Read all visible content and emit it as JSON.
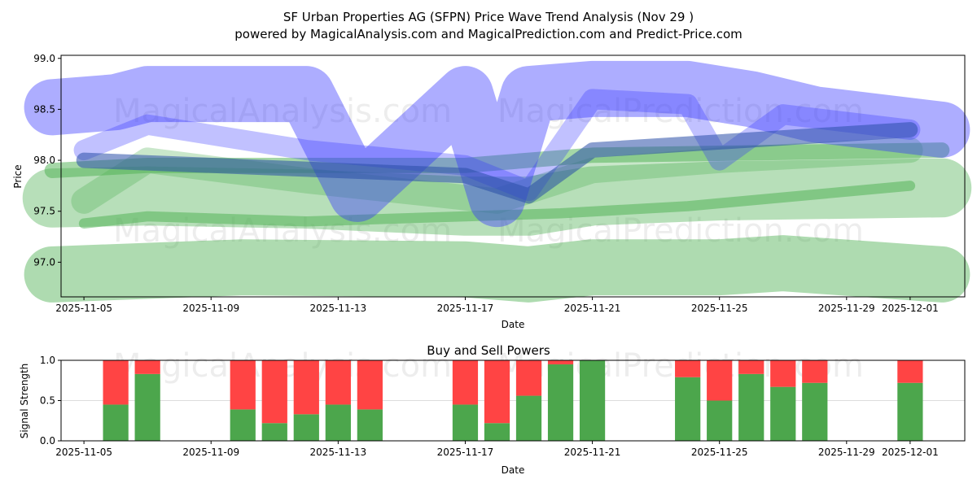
{
  "title_line1": "SF Urban Properties AG (SFPN) Price Wave Trend Analysis (Nov 29 )",
  "title_line2": "powered by MagicalAnalysis.com and MagicalPrediction.com and Predict-Price.com",
  "watermarks": [
    "MagicalAnalysis.com",
    "MagicalPrediction.com"
  ],
  "colors": {
    "blue": "#3333ff",
    "darkblue": "#2a4fa8",
    "green": "#4caf50",
    "buy": "#4ca64c",
    "sell": "#ff4444"
  },
  "chart_data": [
    {
      "type": "line",
      "title": "",
      "xlabel": "Date",
      "ylabel": "Price",
      "ylim": [
        96.66,
        99.03
      ],
      "xlim": [
        "2025-11-04.28",
        "2025-12-02.72"
      ],
      "yticks": [
        "97.0",
        "97.5",
        "98.0",
        "98.5",
        "99.0"
      ],
      "xticks": [
        "2025-11-05",
        "2025-11-09",
        "2025-11-13",
        "2025-11-17",
        "2025-11-21",
        "2025-11-25",
        "2025-11-29",
        "2025-12-01"
      ],
      "series": [
        {
          "name": "green-band-low",
          "color": "green",
          "opacity": 0.45,
          "thickness": 0.55,
          "points": [
            [
              "2025-11-04",
              96.88
            ],
            [
              "2025-11-10",
              96.95
            ],
            [
              "2025-11-17",
              96.93
            ],
            [
              "2025-11-19",
              96.88
            ],
            [
              "2025-11-21",
              96.95
            ],
            [
              "2025-11-25",
              96.95
            ],
            [
              "2025-11-27",
              96.99
            ],
            [
              "2025-12-02",
              96.88
            ]
          ]
        },
        {
          "name": "green-band-mid",
          "color": "green",
          "opacity": 0.4,
          "thickness": 0.58,
          "points": [
            [
              "2025-11-04",
              97.63
            ],
            [
              "2025-11-07",
              97.65
            ],
            [
              "2025-11-12",
              97.62
            ],
            [
              "2025-11-17",
              97.55
            ],
            [
              "2025-11-19",
              97.55
            ],
            [
              "2025-11-21",
              97.65
            ],
            [
              "2025-11-25",
              97.7
            ],
            [
              "2025-12-02",
              97.73
            ]
          ]
        },
        {
          "name": "green-line-lower",
          "color": "green",
          "opacity": 0.5,
          "thickness": 0.1,
          "points": [
            [
              "2025-11-05",
              97.38
            ],
            [
              "2025-11-07",
              97.45
            ],
            [
              "2025-11-12",
              97.4
            ],
            [
              "2025-11-17",
              97.45
            ],
            [
              "2025-11-20",
              97.48
            ],
            [
              "2025-11-24",
              97.55
            ],
            [
              "2025-12-01",
              97.75
            ]
          ]
        },
        {
          "name": "green-line-upper",
          "color": "green",
          "opacity": 0.5,
          "thickness": 0.15,
          "points": [
            [
              "2025-11-04",
              97.9
            ],
            [
              "2025-11-07",
              97.95
            ],
            [
              "2025-11-13",
              97.95
            ],
            [
              "2025-11-17",
              97.95
            ],
            [
              "2025-11-21",
              98.05
            ],
            [
              "2025-12-02",
              98.1
            ]
          ]
        },
        {
          "name": "green-line-wave",
          "color": "green",
          "opacity": 0.3,
          "thickness": 0.25,
          "points": [
            [
              "2025-11-05",
              97.6
            ],
            [
              "2025-11-07",
              98.0
            ],
            [
              "2025-11-12",
              97.8
            ],
            [
              "2025-11-18",
              97.6
            ],
            [
              "2025-11-21",
              97.9
            ],
            [
              "2025-11-25",
              98.0
            ],
            [
              "2025-12-01",
              98.1
            ]
          ]
        },
        {
          "name": "blue-band-main",
          "color": "blue",
          "opacity": 0.4,
          "thickness": 0.55,
          "points": [
            [
              "2025-11-04",
              98.52
            ],
            [
              "2025-11-06",
              98.57
            ],
            [
              "2025-11-07",
              98.65
            ],
            [
              "2025-11-12",
              98.65
            ],
            [
              "2025-11-13.6",
              97.67
            ],
            [
              "2025-11-17",
              98.65
            ],
            [
              "2025-11-18",
              97.62
            ],
            [
              "2025-11-19",
              98.65
            ],
            [
              "2025-11-21",
              98.7
            ],
            [
              "2025-11-24",
              98.7
            ],
            [
              "2025-11-26",
              98.6
            ],
            [
              "2025-11-28",
              98.45
            ],
            [
              "2025-12-02",
              98.3
            ]
          ]
        },
        {
          "name": "blue-line-wave",
          "color": "blue",
          "opacity": 0.3,
          "thickness": 0.2,
          "points": [
            [
              "2025-11-05",
              98.1
            ],
            [
              "2025-11-07",
              98.35
            ],
            [
              "2025-11-12",
              98.1
            ],
            [
              "2025-11-17",
              97.95
            ],
            [
              "2025-11-19",
              97.7
            ],
            [
              "2025-11-21",
              98.6
            ],
            [
              "2025-11-24",
              98.55
            ],
            [
              "2025-11-25",
              98.0
            ],
            [
              "2025-11-27",
              98.45
            ],
            [
              "2025-12-01",
              98.3
            ]
          ]
        },
        {
          "name": "blue-line-trend",
          "color": "darkblue",
          "opacity": 0.55,
          "thickness": 0.15,
          "points": [
            [
              "2025-11-05",
              98.0
            ],
            [
              "2025-11-17",
              97.85
            ],
            [
              "2025-11-19",
              97.65
            ],
            [
              "2025-11-21",
              98.1
            ],
            [
              "2025-12-01",
              98.3
            ]
          ]
        }
      ]
    },
    {
      "type": "bar",
      "title": "Buy and Sell Powers",
      "xlabel": "Date",
      "ylabel": "Signal Strength",
      "ylim": [
        0,
        1.0
      ],
      "yticks": [
        "0.0",
        "0.5",
        "1.0"
      ],
      "xticks": [
        "2025-11-05",
        "2025-11-09",
        "2025-11-13",
        "2025-11-17",
        "2025-11-21",
        "2025-11-25",
        "2025-11-29",
        "2025-12-01"
      ],
      "categories": [
        "2025-11-06",
        "2025-11-07",
        "2025-11-10",
        "2025-11-11",
        "2025-11-12",
        "2025-11-13",
        "2025-11-14",
        "2025-11-17",
        "2025-11-18",
        "2025-11-19",
        "2025-11-20",
        "2025-11-21",
        "2025-11-24",
        "2025-11-25",
        "2025-11-26",
        "2025-11-27",
        "2025-11-28",
        "2025-12-01"
      ],
      "series": [
        {
          "name": "Buy",
          "values": [
            0.45,
            0.83,
            0.39,
            0.22,
            0.33,
            0.45,
            0.39,
            0.45,
            0.22,
            0.56,
            0.95,
            1.0,
            0.79,
            0.5,
            0.83,
            0.67,
            0.72,
            0.72
          ]
        },
        {
          "name": "Sell",
          "values": [
            0.55,
            0.17,
            0.61,
            0.78,
            0.67,
            0.55,
            0.61,
            0.55,
            0.78,
            0.44,
            0.05,
            0.0,
            0.21,
            0.5,
            0.17,
            0.33,
            0.28,
            0.28
          ]
        }
      ]
    }
  ]
}
